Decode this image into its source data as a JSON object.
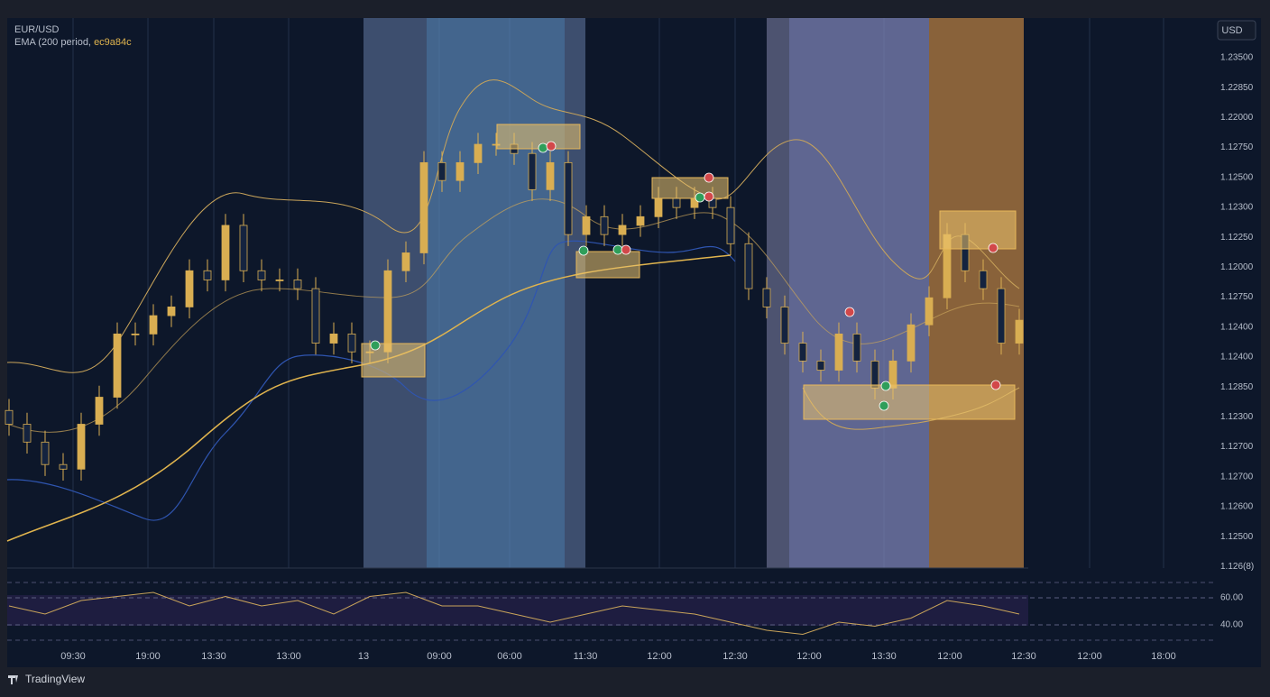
{
  "header": {
    "symbol": "EUR/USD",
    "indicator": "EMA (200 period,",
    "indicator_color_text": "ec9a84c",
    "currency_button": "USD"
  },
  "chart_data": {
    "type": "candlestick",
    "open": [
      1.158,
      1.155,
      1.1511,
      1.1462,
      1.1452,
      1.155,
      1.1609,
      1.1747,
      1.1747,
      1.1787,
      1.1806,
      1.1885,
      1.1865,
      1.1984,
      1.1885,
      1.1865,
      1.1865,
      1.1846,
      1.1727,
      1.1747,
      1.1708,
      1.1708,
      1.1885,
      1.1924,
      1.2121,
      1.2082,
      1.2121,
      1.2161,
      1.2161,
      1.2141,
      1.2062,
      1.2121,
      1.1964,
      1.2003,
      1.1964,
      1.1984,
      1.2003,
      1.2043,
      1.2023,
      1.2043,
      1.2023,
      1.1944,
      1.1846,
      1.1806,
      1.1727,
      1.1688,
      1.1668,
      1.1747,
      1.1688,
      1.1629,
      1.1688,
      1.1767,
      1.1826,
      1.1964,
      1.1885,
      1.1846,
      1.1727
    ],
    "high": [
      1.1605,
      1.1575,
      1.1536,
      1.1487,
      1.1575,
      1.1634,
      1.1772,
      1.1772,
      1.1812,
      1.1831,
      1.191,
      1.191,
      1.2009,
      1.2009,
      1.191,
      1.189,
      1.189,
      1.1871,
      1.1772,
      1.1772,
      1.1733,
      1.191,
      1.1949,
      1.2146,
      1.2146,
      1.2146,
      1.2186,
      1.2186,
      1.2186,
      1.2166,
      1.2146,
      1.2146,
      1.2028,
      1.2028,
      1.2009,
      1.2028,
      1.2068,
      1.2068,
      1.2068,
      1.2068,
      1.2048,
      1.1969,
      1.1871,
      1.1831,
      1.1752,
      1.1713,
      1.1772,
      1.1772,
      1.1713,
      1.1713,
      1.1792,
      1.1851,
      1.1989,
      1.1989,
      1.191,
      1.1871,
      1.1802
    ],
    "low": [
      1.1525,
      1.1486,
      1.1437,
      1.1427,
      1.1427,
      1.1525,
      1.1584,
      1.1722,
      1.1722,
      1.1762,
      1.1781,
      1.184,
      1.184,
      1.186,
      1.184,
      1.184,
      1.1821,
      1.1702,
      1.1702,
      1.1683,
      1.1683,
      1.1683,
      1.186,
      1.1899,
      1.2057,
      1.2057,
      1.2096,
      1.2136,
      1.2116,
      1.2037,
      1.2037,
      1.1939,
      1.1939,
      1.1939,
      1.1939,
      1.1959,
      1.1978,
      1.1998,
      1.1998,
      1.1998,
      1.1919,
      1.1821,
      1.1781,
      1.1702,
      1.1663,
      1.1643,
      1.1643,
      1.1663,
      1.1604,
      1.1604,
      1.1663,
      1.1742,
      1.1801,
      1.186,
      1.1821,
      1.1702,
      1.1702
    ],
    "close": [
      1.155,
      1.1511,
      1.1462,
      1.1452,
      1.155,
      1.1609,
      1.1747,
      1.1747,
      1.1787,
      1.1806,
      1.1885,
      1.1865,
      1.1984,
      1.1885,
      1.1865,
      1.1865,
      1.1846,
      1.1727,
      1.1747,
      1.1708,
      1.1708,
      1.1885,
      1.1924,
      1.2121,
      1.2082,
      1.2121,
      1.2161,
      1.2161,
      1.2141,
      1.2062,
      1.2121,
      1.1964,
      1.2003,
      1.1964,
      1.1984,
      1.2003,
      1.2043,
      1.2023,
      1.2043,
      1.2023,
      1.1944,
      1.1846,
      1.1806,
      1.1727,
      1.1688,
      1.1668,
      1.1747,
      1.1688,
      1.1629,
      1.1688,
      1.1767,
      1.1826,
      1.1964,
      1.1885,
      1.1846,
      1.1727,
      1.1777
    ],
    "ylim": [
      1.124,
      1.235
    ],
    "up_color": "#d9ae52",
    "down_color": "#14233f"
  },
  "price_axis": {
    "labels": [
      "1.23500",
      "1.22850",
      "1.22000",
      "1.12750",
      "1.12500",
      "1.12300",
      "1.12250",
      "1.12000",
      "1.12750",
      "1.12400",
      "1.12400",
      "1.12850",
      "1.12300",
      "1.12700",
      "1.12700",
      "1.12600",
      "1.12500",
      "1.126(8)"
    ]
  },
  "time_axis": {
    "labels": [
      "09:30",
      "19:00",
      "13:30",
      "13:00",
      "13",
      "09:00",
      "06:00",
      "11:30",
      "12:00",
      "12:30",
      "12:00",
      "13:30",
      "12:00",
      "12:30",
      "12:00",
      "18:00"
    ]
  },
  "rsi": {
    "values": [
      54,
      48,
      58,
      61,
      64,
      54,
      61,
      54,
      58,
      48,
      61,
      64,
      54,
      54,
      48,
      42,
      48,
      54,
      51,
      48,
      42,
      36,
      33,
      42,
      39,
      45,
      58,
      54,
      48
    ],
    "ylim": [
      30,
      70
    ],
    "yticks": [
      {
        "value": 60,
        "label": "60.00"
      },
      {
        "value": 40,
        "label": "40.00"
      }
    ],
    "color": "#c9a45a"
  },
  "footer": {
    "brand": "TradingView"
  }
}
